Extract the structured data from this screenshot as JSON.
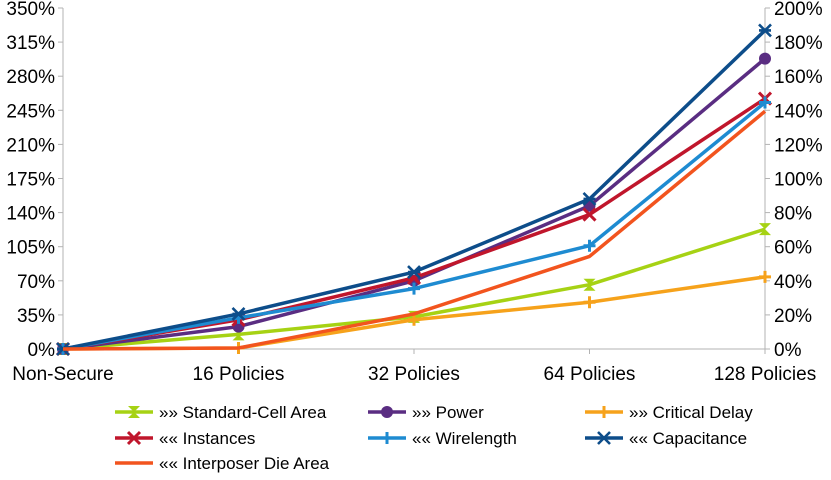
{
  "chart_data": {
    "type": "line",
    "categories": [
      "Non-Secure",
      "16 Policies",
      "32 Policies",
      "64 Policies",
      "128 Policies"
    ],
    "y_left": {
      "min": 0,
      "max": 350,
      "step": 35,
      "unit": "%"
    },
    "y_right": {
      "min": 0,
      "max": 200,
      "step": 20,
      "unit": "%"
    },
    "series": [
      {
        "name": "»» Standard-Cell Area",
        "axis": "left",
        "color": "#a6d214",
        "marker": "hourglass",
        "values": [
          0,
          15,
          33,
          66,
          123
        ]
      },
      {
        "name": "»» Power",
        "axis": "left",
        "color": "#5a2d82",
        "marker": "circle",
        "values": [
          0,
          23,
          70,
          147,
          298
        ]
      },
      {
        "name": "»» Critical Delay",
        "axis": "left",
        "color": "#f6a21b",
        "marker": "plus",
        "values": [
          0,
          1,
          30,
          48,
          74
        ]
      },
      {
        "name": "«« Instances",
        "axis": "left",
        "color": "#c0162c",
        "marker": "x",
        "values": [
          0,
          30,
          73,
          138,
          257
        ]
      },
      {
        "name": "«« Wirelength",
        "axis": "left",
        "color": "#1e8bd1",
        "marker": "plus",
        "values": [
          0,
          32,
          62,
          106,
          253
        ]
      },
      {
        "name": "«« Capacitance",
        "axis": "left",
        "color": "#0d4d8a",
        "marker": "asterisk",
        "values": [
          0,
          36,
          79,
          154,
          327
        ]
      },
      {
        "name": "«« Interposer Die Area",
        "axis": "left",
        "color": "#f2541e",
        "marker": "none",
        "values": [
          0,
          1,
          36,
          95,
          244
        ]
      }
    ],
    "legend_position": "bottom",
    "grid": false
  }
}
